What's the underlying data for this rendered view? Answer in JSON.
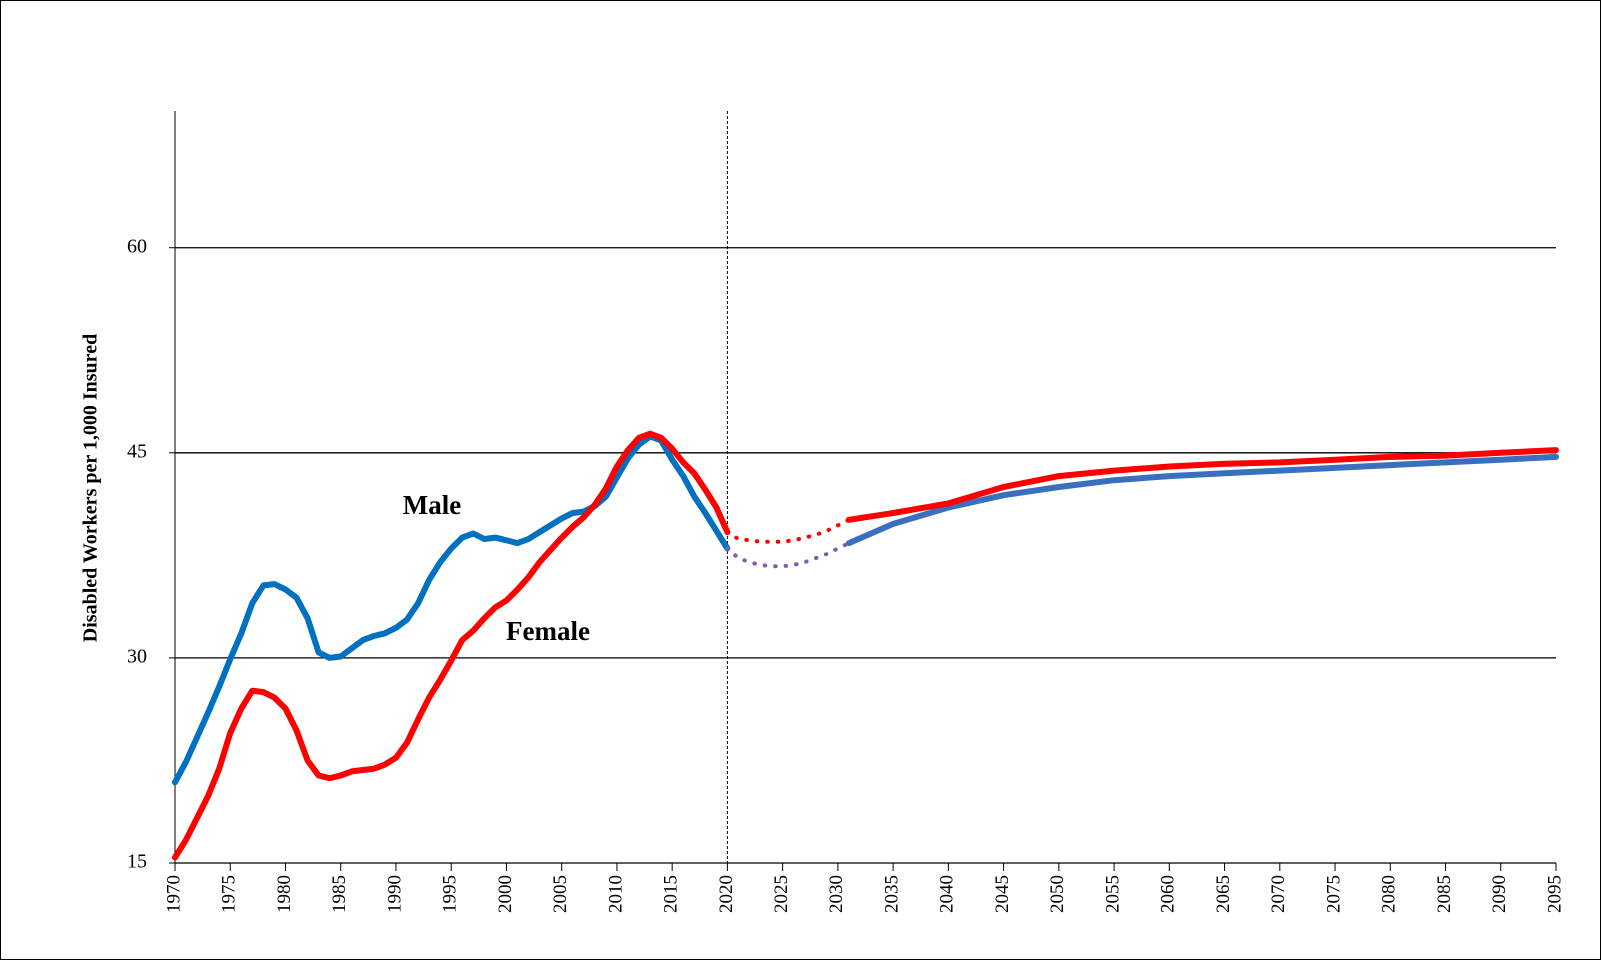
{
  "chart_data": {
    "type": "line",
    "ylabel": "Disabled Workers per 1,000 Insured",
    "xlim": [
      1970,
      2095
    ],
    "ylim": [
      15,
      70
    ],
    "yticks": [
      15,
      30,
      45,
      60
    ],
    "xticks": [
      1970,
      1975,
      1980,
      1985,
      1990,
      1995,
      2000,
      2005,
      2010,
      2015,
      2020,
      2025,
      2030,
      2035,
      2040,
      2045,
      2050,
      2055,
      2060,
      2065,
      2070,
      2075,
      2080,
      2085,
      2090,
      2095
    ],
    "grid": true,
    "vline": 2020,
    "series": [
      {
        "name": "Male",
        "color": "#0070c0",
        "style": "solid",
        "x": [
          1970,
          1971,
          1972,
          1973,
          1974,
          1975,
          1976,
          1977,
          1978,
          1979,
          1980,
          1981,
          1982,
          1983,
          1984,
          1985,
          1986,
          1987,
          1988,
          1989,
          1990,
          1991,
          1992,
          1993,
          1994,
          1995,
          1996,
          1997,
          1998,
          1999,
          2000,
          2001,
          2002,
          2003,
          2004,
          2005,
          2006,
          2007,
          2008,
          2009,
          2010,
          2011,
          2012,
          2013,
          2014,
          2015,
          2016,
          2017,
          2018,
          2019,
          2020
        ],
        "values": [
          20.9,
          22.4,
          24.2,
          26.0,
          27.9,
          29.9,
          31.8,
          34.0,
          35.3,
          35.4,
          35.0,
          34.4,
          32.9,
          30.4,
          30.0,
          30.1,
          30.7,
          31.3,
          31.6,
          31.8,
          32.2,
          32.8,
          34.0,
          35.7,
          37.0,
          38.0,
          38.8,
          39.1,
          38.7,
          38.8,
          38.6,
          38.4,
          38.7,
          39.2,
          39.7,
          40.2,
          40.6,
          40.7,
          41.1,
          41.8,
          43.2,
          44.6,
          45.6,
          46.2,
          45.9,
          44.5,
          43.3,
          41.8,
          40.6,
          39.3,
          38.0
        ]
      },
      {
        "name": "Female",
        "color": "#ff0000",
        "style": "solid",
        "x": [
          1970,
          1971,
          1972,
          1973,
          1974,
          1975,
          1976,
          1977,
          1978,
          1979,
          1980,
          1981,
          1982,
          1983,
          1984,
          1985,
          1986,
          1987,
          1988,
          1989,
          1990,
          1991,
          1992,
          1993,
          1994,
          1995,
          1996,
          1997,
          1998,
          1999,
          2000,
          2001,
          2002,
          2003,
          2004,
          2005,
          2006,
          2007,
          2008,
          2009,
          2010,
          2011,
          2012,
          2013,
          2014,
          2015,
          2016,
          2017,
          2018,
          2019,
          2020
        ],
        "values": [
          15.4,
          16.7,
          18.3,
          19.9,
          21.9,
          24.5,
          26.3,
          27.6,
          27.5,
          27.1,
          26.3,
          24.7,
          22.5,
          21.4,
          21.2,
          21.4,
          21.7,
          21.8,
          21.9,
          22.2,
          22.7,
          23.8,
          25.5,
          27.1,
          28.4,
          29.8,
          31.3,
          32.0,
          32.9,
          33.7,
          34.2,
          35.0,
          35.9,
          37.0,
          37.9,
          38.8,
          39.6,
          40.3,
          41.2,
          42.4,
          44.0,
          45.2,
          46.1,
          46.4,
          46.1,
          45.3,
          44.3,
          43.5,
          42.3,
          41.0,
          39.2
        ]
      },
      {
        "color": "#7f5fa8",
        "style": "dotted",
        "x": [
          2020,
          2021,
          2022,
          2023,
          2024,
          2025,
          2026,
          2027,
          2028,
          2029,
          2030,
          2031
        ],
        "values": [
          38.0,
          37.3,
          37.0,
          36.8,
          36.7,
          36.7,
          36.8,
          37.0,
          37.3,
          37.6,
          38.0,
          38.4
        ]
      },
      {
        "color": "#ff0000",
        "style": "dotted",
        "x": [
          2020,
          2021,
          2022,
          2023,
          2024,
          2025,
          2026,
          2027,
          2028,
          2029,
          2030,
          2031
        ],
        "values": [
          39.2,
          38.7,
          38.6,
          38.5,
          38.5,
          38.5,
          38.6,
          38.8,
          39.0,
          39.3,
          39.7,
          40.1
        ]
      },
      {
        "color": "#3a6fc0",
        "style": "solid",
        "x": [
          2031,
          2035,
          2040,
          2045,
          2050,
          2055,
          2060,
          2065,
          2070,
          2075,
          2080,
          2085,
          2090,
          2095
        ],
        "values": [
          38.4,
          39.8,
          41.0,
          41.9,
          42.5,
          43.0,
          43.3,
          43.5,
          43.7,
          43.9,
          44.1,
          44.3,
          44.5,
          44.7
        ]
      },
      {
        "color": "#ff0000",
        "style": "solid",
        "x": [
          2031,
          2035,
          2040,
          2045,
          2050,
          2055,
          2060,
          2065,
          2070,
          2075,
          2080,
          2085,
          2090,
          2095
        ],
        "values": [
          40.1,
          40.6,
          41.3,
          42.5,
          43.3,
          43.7,
          44.0,
          44.2,
          44.3,
          44.5,
          44.7,
          44.8,
          45.0,
          45.2
        ]
      }
    ]
  }
}
